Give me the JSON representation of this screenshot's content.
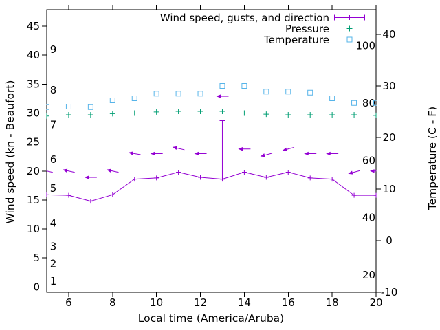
{
  "chart_data": {
    "type": "line",
    "title": "",
    "x_label": "Local time (America/Aruba)",
    "y_left_label": "Wind speed (kn - Beaufort)",
    "y_right_label": "Temperature (C - F)",
    "x_range": [
      5,
      20
    ],
    "x_tick_labels": [
      6,
      8,
      10,
      12,
      14,
      16,
      18,
      20
    ],
    "y_left_ticks_kn": [
      0,
      5,
      10,
      15,
      20,
      25,
      30,
      35,
      40,
      45
    ],
    "beaufort_inner_labels": [
      {
        "label": "1",
        "kn": 1
      },
      {
        "label": "2",
        "kn": 4
      },
      {
        "label": "3",
        "kn": 7
      },
      {
        "label": "4",
        "kn": 11
      },
      {
        "label": "5",
        "kn": 17
      },
      {
        "label": "6",
        "kn": 22
      },
      {
        "label": "7",
        "kn": 28
      },
      {
        "label": "8",
        "kn": 34
      },
      {
        "label": "9",
        "kn": 41
      }
    ],
    "y_right_ticks_c": [
      -10,
      0,
      10,
      20,
      30,
      40
    ],
    "fahrenheit_inner_labels": [
      20,
      40,
      60,
      80,
      100
    ],
    "axis_color": "#000000",
    "grid": false,
    "legend_position": "top-right-inside",
    "x_hours": [
      5,
      6,
      7,
      8,
      9,
      10,
      11,
      12,
      13,
      14,
      15,
      16,
      17,
      18,
      19,
      20
    ],
    "series": [
      {
        "name": "Wind speed, gusts, and direction",
        "color": "#9400d3",
        "style": "errorbar-line-with-direction-arrows",
        "wind_kn": [
          15.9,
          15.8,
          14.8,
          15.9,
          18.6,
          18.8,
          19.8,
          18.9,
          18.6,
          19.8,
          18.9,
          19.8,
          18.8,
          18.6,
          15.8,
          15.8
        ],
        "gust_kn": [
          15.9,
          15.8,
          14.8,
          15.9,
          18.6,
          18.8,
          19.8,
          18.9,
          28.7,
          19.8,
          18.9,
          19.8,
          18.8,
          18.6,
          15.8,
          15.8
        ],
        "arrow_kn": [
          20.0,
          20.0,
          18.9,
          20.0,
          23.0,
          23.0,
          23.9,
          23.0,
          32.9,
          23.8,
          22.8,
          23.8,
          23.0,
          23.0,
          19.8,
          20.0
        ],
        "arrow_angle_deg": [
          13,
          13,
          0,
          13,
          10,
          0,
          13,
          0,
          0,
          0,
          -15,
          -15,
          0,
          0,
          -15,
          0
        ]
      },
      {
        "name": "Pressure",
        "color": "#009e73",
        "style": "plus-points",
        "values_kn_scale": [
          29.5,
          29.7,
          29.7,
          29.9,
          30.0,
          30.2,
          30.3,
          30.3,
          30.3,
          30.0,
          29.8,
          29.7,
          29.7,
          29.7,
          29.7,
          29.6
        ]
      },
      {
        "name": "Temperature",
        "color": "#56b4e9",
        "style": "open-squares",
        "values_c": [
          25.9,
          26.0,
          25.9,
          27.2,
          27.6,
          28.5,
          28.5,
          28.5,
          30.0,
          30.0,
          28.9,
          28.9,
          28.7,
          27.6,
          26.7,
          26.7
        ]
      }
    ]
  }
}
